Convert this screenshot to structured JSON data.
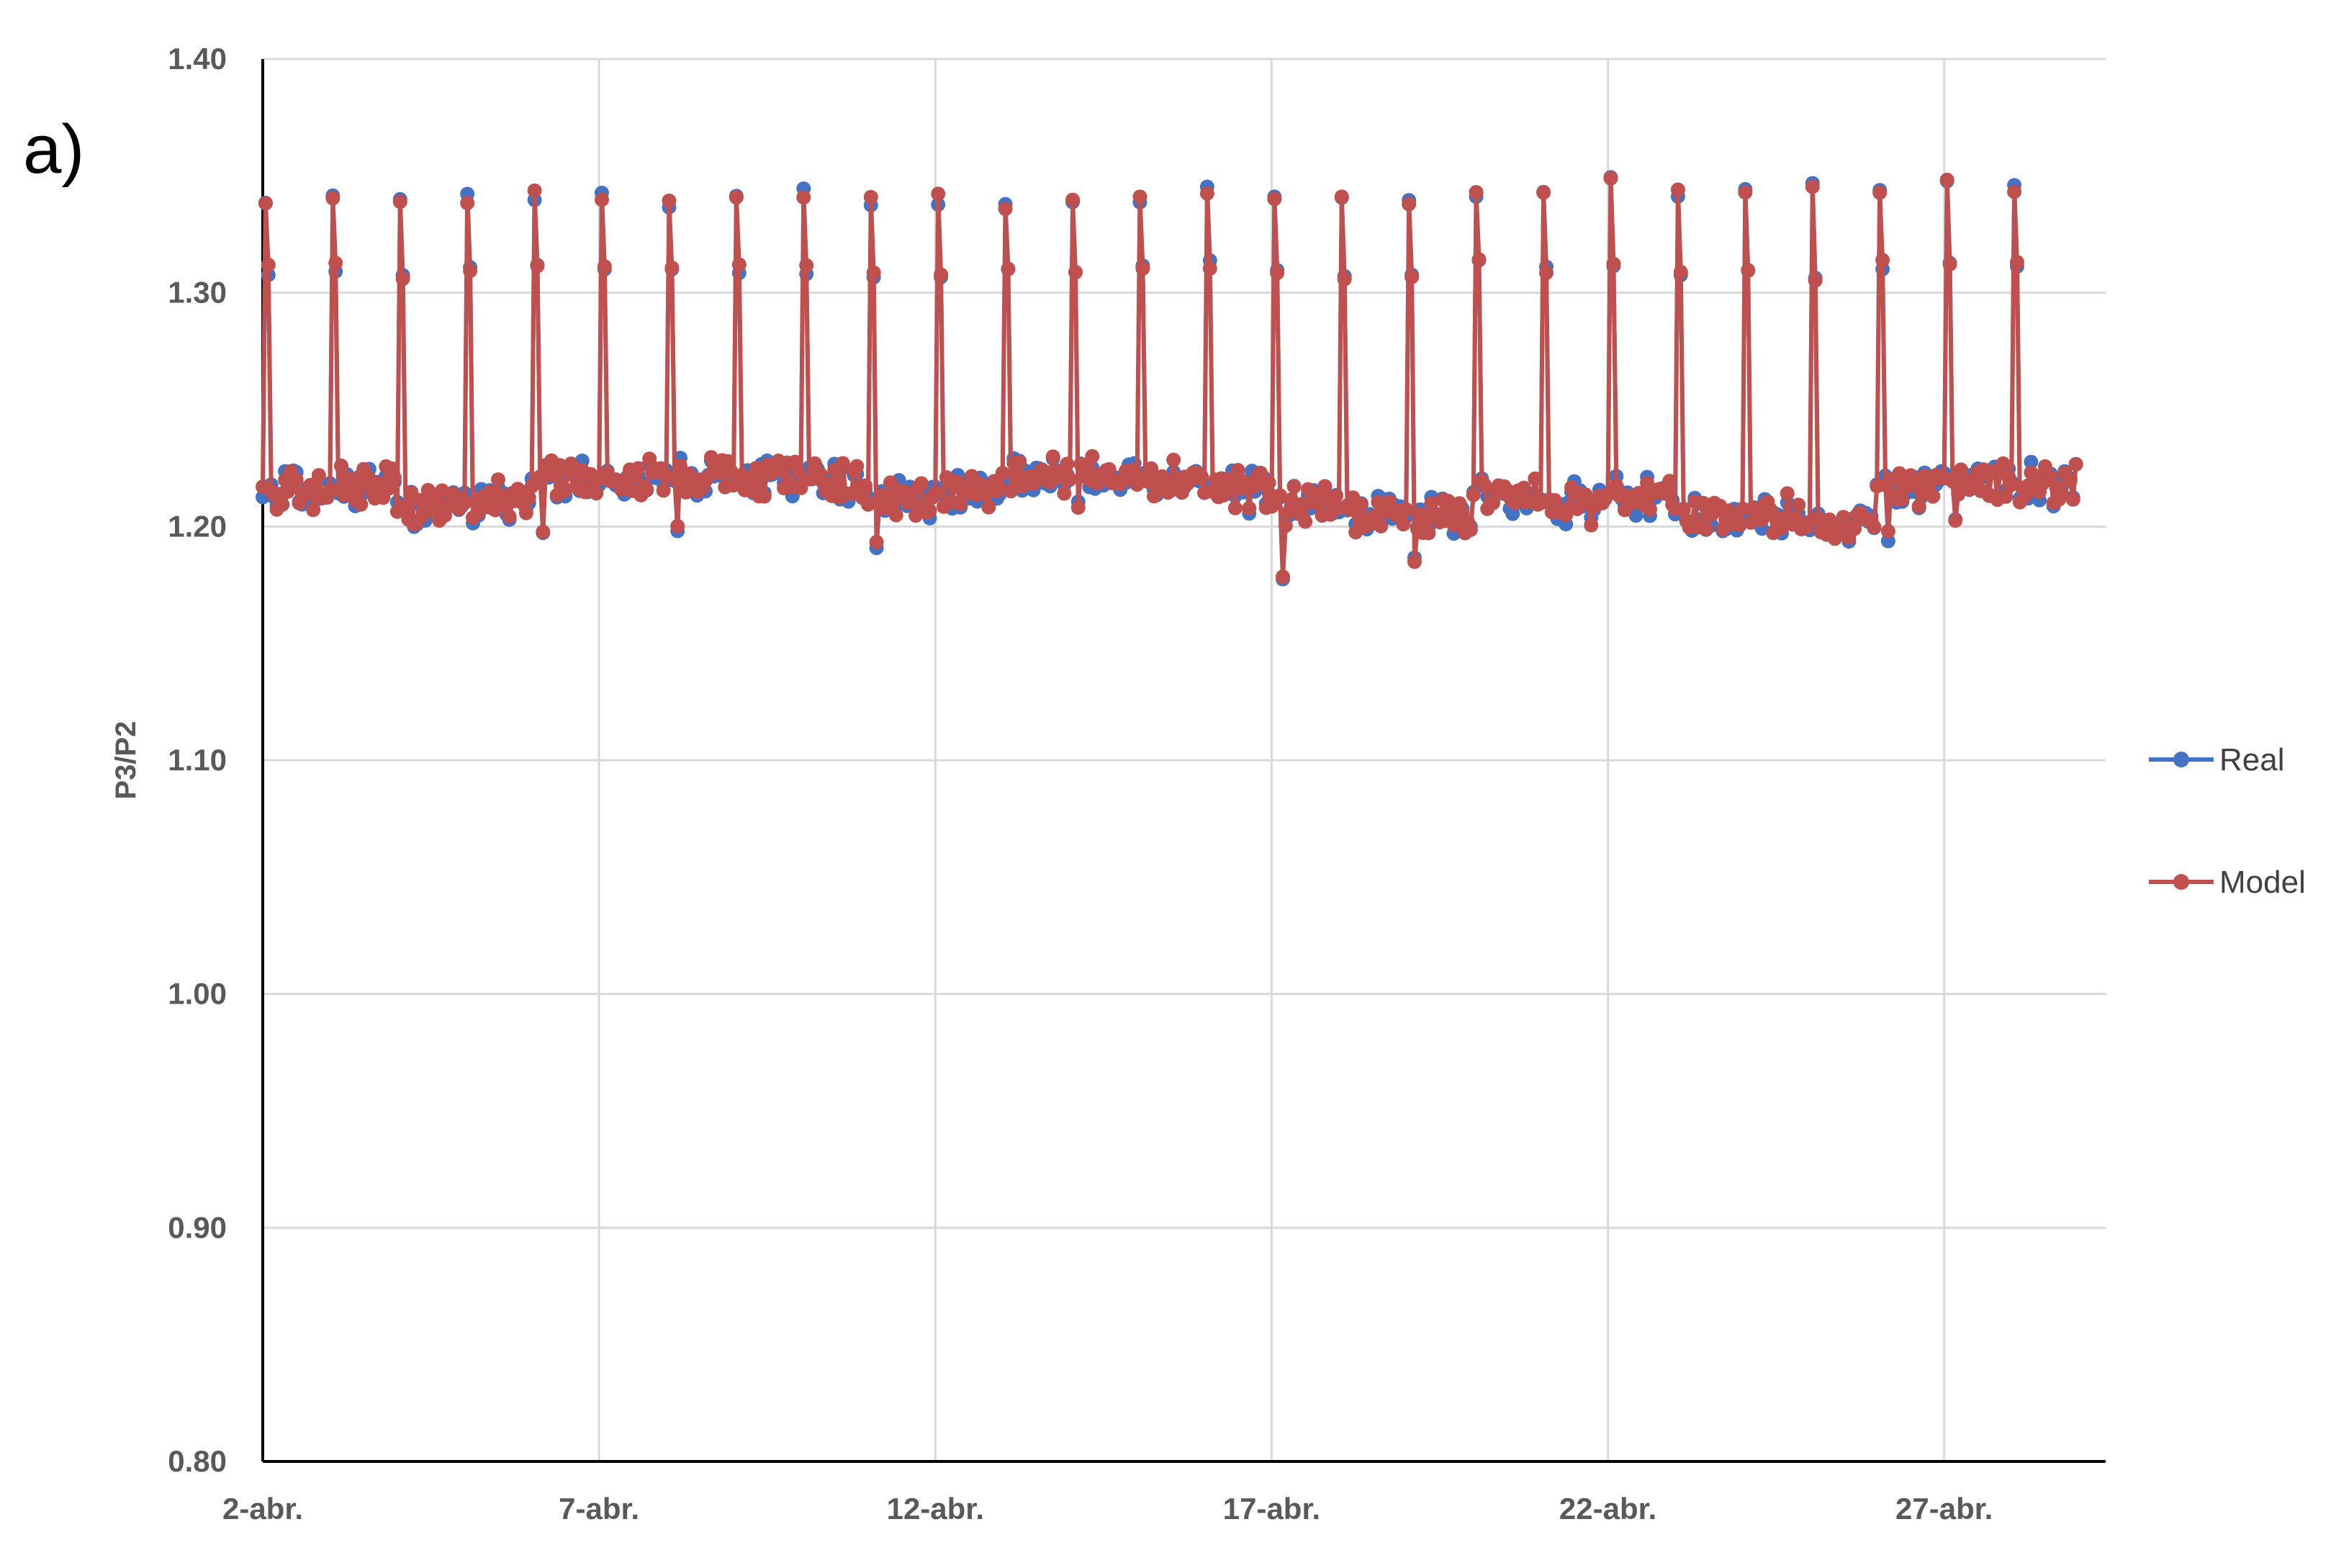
{
  "panel_label": "a)",
  "chart_data": {
    "type": "line",
    "title": "",
    "xlabel": "",
    "ylabel": "P3/P2",
    "ylim": [
      0.8,
      1.4
    ],
    "yticks": [
      "0.80",
      "0.90",
      "1.00",
      "1.10",
      "1.20",
      "1.30",
      "1.40"
    ],
    "xlim": [
      "2-abr.",
      "29-abr."
    ],
    "xticks": [
      "2-abr.",
      "7-abr.",
      "12-abr.",
      "17-abr.",
      "22-abr.",
      "27-abr."
    ],
    "grid": "on",
    "legend_position": "right",
    "cycle_days": [
      {
        "day": "2-abr.",
        "base": 1.215,
        "peak": 1.345
      },
      {
        "day": "3-abr.",
        "base": 1.218,
        "peak": 1.344
      },
      {
        "day": "4-abr.",
        "base": 1.208,
        "peak": 1.342
      },
      {
        "day": "5-abr.",
        "base": 1.212,
        "peak": 1.343
      },
      {
        "day": "6-abr.",
        "base": 1.22,
        "peak": 1.343
      },
      {
        "day": "7-abr.",
        "base": 1.22,
        "peak": 1.341
      },
      {
        "day": "8-abr.",
        "base": 1.222,
        "peak": 1.34
      },
      {
        "day": "9-abr.",
        "base": 1.22,
        "peak": 1.343
      },
      {
        "day": "10-abr.",
        "base": 1.218,
        "peak": 1.344
      },
      {
        "day": "11-abr.",
        "base": 1.212,
        "peak": 1.343
      },
      {
        "day": "12-abr.",
        "base": 1.215,
        "peak": 1.34
      },
      {
        "day": "13-abr.",
        "base": 1.223,
        "peak": 1.34
      },
      {
        "day": "14-abr.",
        "base": 1.222,
        "peak": 1.341
      },
      {
        "day": "15-abr.",
        "base": 1.22,
        "peak": 1.342
      },
      {
        "day": "16-abr.",
        "base": 1.215,
        "peak": 1.346
      },
      {
        "day": "17-abr.",
        "base": 1.21,
        "peak": 1.343
      },
      {
        "day": "18-abr.",
        "base": 1.205,
        "peak": 1.342
      },
      {
        "day": "19-abr.",
        "base": 1.205,
        "peak": 1.341
      },
      {
        "day": "20-abr.",
        "base": 1.215,
        "peak": 1.347
      },
      {
        "day": "21-abr.",
        "base": 1.21,
        "peak": 1.345
      },
      {
        "day": "22-abr.",
        "base": 1.212,
        "peak": 1.348
      },
      {
        "day": "23-abr.",
        "base": 1.205,
        "peak": 1.343
      },
      {
        "day": "24-abr.",
        "base": 1.205,
        "peak": 1.345
      },
      {
        "day": "25-abr.",
        "base": 1.2,
        "peak": 1.346
      },
      {
        "day": "26-abr.",
        "base": 1.215,
        "peak": 1.347
      },
      {
        "day": "27-abr.",
        "base": 1.22,
        "peak": 1.349
      },
      {
        "day": "28-abr.",
        "base": 1.218,
        "peak": 1.345
      }
    ],
    "series": [
      {
        "name": "Real",
        "color": "#4472c4"
      },
      {
        "name": "Model",
        "color": "#c0504d"
      }
    ]
  }
}
